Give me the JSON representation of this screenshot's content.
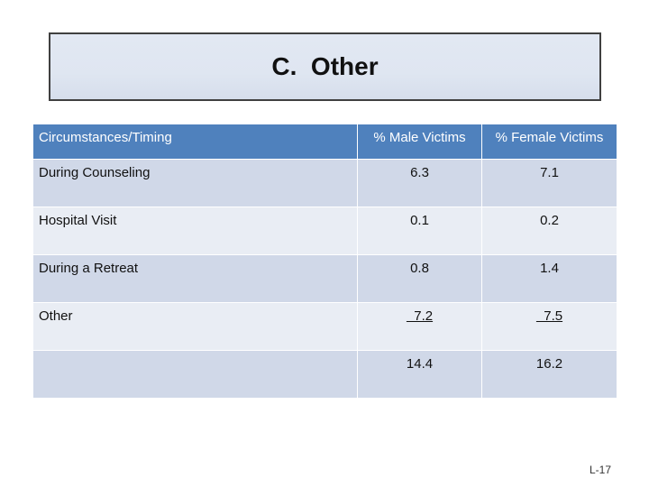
{
  "title": "C.  Other",
  "table": {
    "headers": [
      "Circumstances/Timing",
      "% Male Victims",
      "% Female Victims"
    ],
    "rows": [
      [
        "During Counseling",
        "6.3",
        "7.1"
      ],
      [
        "Hospital Visit",
        "0.1",
        "0.2"
      ],
      [
        "During a Retreat",
        "0.8",
        "1.4"
      ],
      [
        "Other",
        "  7.2",
        "  7.5"
      ],
      [
        "",
        "14.4",
        "16.2"
      ]
    ]
  },
  "page_number": "L-17"
}
